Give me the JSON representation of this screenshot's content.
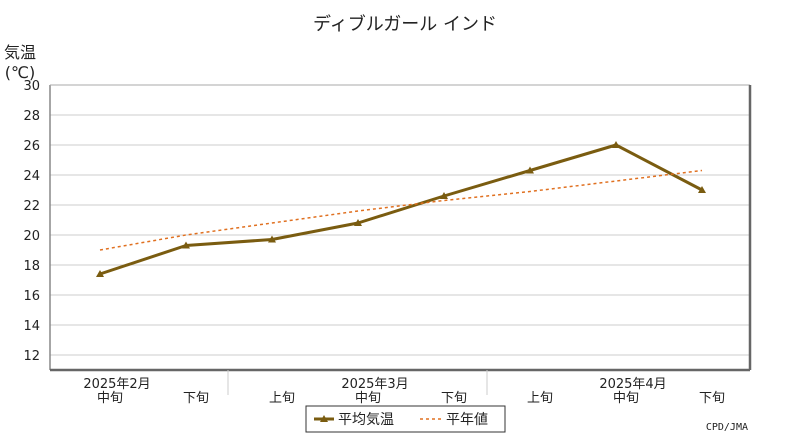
{
  "chart_data": {
    "type": "line",
    "title": "ディブルガール インド",
    "ylabel_line1": "気温",
    "ylabel_line2": "(℃)",
    "ylim": [
      11,
      30
    ],
    "yticks": [
      12,
      14,
      16,
      18,
      20,
      22,
      24,
      26,
      28,
      30
    ],
    "grid": true,
    "x_period_labels": [
      "中旬",
      "下旬",
      "上旬",
      "中旬",
      "下旬",
      "上旬",
      "中旬",
      "下旬"
    ],
    "x_month_labels": [
      {
        "label": "2025年2月",
        "index": 0
      },
      {
        "label": "2025年3月",
        "index": 3
      },
      {
        "label": "2025年4月",
        "index": 6
      }
    ],
    "series": [
      {
        "name": "平均気温",
        "color": "#7a5c10",
        "style": "solid",
        "values": [
          17.4,
          19.3,
          19.7,
          20.8,
          22.6,
          24.3,
          26.0,
          23.0
        ]
      },
      {
        "name": "平年値",
        "color": "#e07020",
        "style": "dashed",
        "values": [
          19.0,
          20.0,
          20.8,
          21.6,
          22.3,
          22.9,
          23.6,
          24.3
        ]
      }
    ],
    "legend_position": "bottom",
    "credit": "CPD/JMA"
  }
}
